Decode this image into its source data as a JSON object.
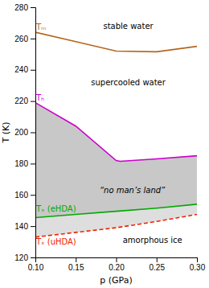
{
  "chart_data": {
    "type": "line",
    "xlabel": "p (GPa)",
    "ylabel": "T (K)",
    "xlim": [
      0.1,
      0.3
    ],
    "ylim": [
      120,
      280
    ],
    "xticks": [
      {
        "value": 0.1,
        "label": "0.10"
      },
      0.15,
      {
        "value": 0.2,
        "label": "0.20"
      },
      0.25,
      {
        "value": 0.3,
        "label": "0.30"
      }
    ],
    "yticks": [
      120,
      140,
      160,
      180,
      200,
      220,
      240,
      260,
      280
    ],
    "series": [
      {
        "name": "Tₘ",
        "color": "#b5651d",
        "line_style": "solid",
        "x": [
          0.1,
          0.15,
          0.2,
          0.25,
          0.3
        ],
        "values": [
          264.0,
          258.0,
          252.0,
          251.5,
          255.0
        ],
        "label_x": 0.101,
        "label_y": 265
      },
      {
        "name": "Tₕ",
        "color": "#cc00cc",
        "line_style": "solid",
        "x": [
          0.1,
          0.15,
          0.2,
          0.205,
          0.25,
          0.3
        ],
        "values": [
          219,
          204,
          182,
          181.5,
          183,
          185
        ],
        "label_x": 0.101,
        "label_y": 220
      },
      {
        "name": "Tₓ (eHDA)",
        "color": "#00aa00",
        "line_style": "solid",
        "x": [
          0.1,
          0.15,
          0.2,
          0.25,
          0.3
        ],
        "values": [
          145.5,
          147.5,
          149.5,
          151.5,
          154.0
        ],
        "label_x": 0.101,
        "label_y": 149
      },
      {
        "name": "Tₓ (uHDA)",
        "color": "#ee2200",
        "line_style": "dashed",
        "x": [
          0.1,
          0.15,
          0.2,
          0.25,
          0.3
        ],
        "values": [
          133.0,
          136.0,
          139.0,
          143.0,
          147.5
        ],
        "label_x": 0.101,
        "label_y": 127.5
      }
    ],
    "bands": [
      {
        "upper": "Tₕ",
        "lower": "Tₓ (eHDA)",
        "color": "#c8c8c8"
      },
      {
        "upper": "Tₓ (eHDA)",
        "lower": "Tₓ (uHDA)",
        "color": "#dedede"
      }
    ],
    "annotations": [
      {
        "text": "stable water",
        "x": 0.215,
        "y": 268
      },
      {
        "text": "supercooled water",
        "x": 0.215,
        "y": 232
      },
      {
        "text": "“no man’s land”",
        "x": 0.22,
        "y": 163,
        "font_style": "italic"
      },
      {
        "text": "amorphous ice",
        "x": 0.245,
        "y": 131
      }
    ]
  }
}
